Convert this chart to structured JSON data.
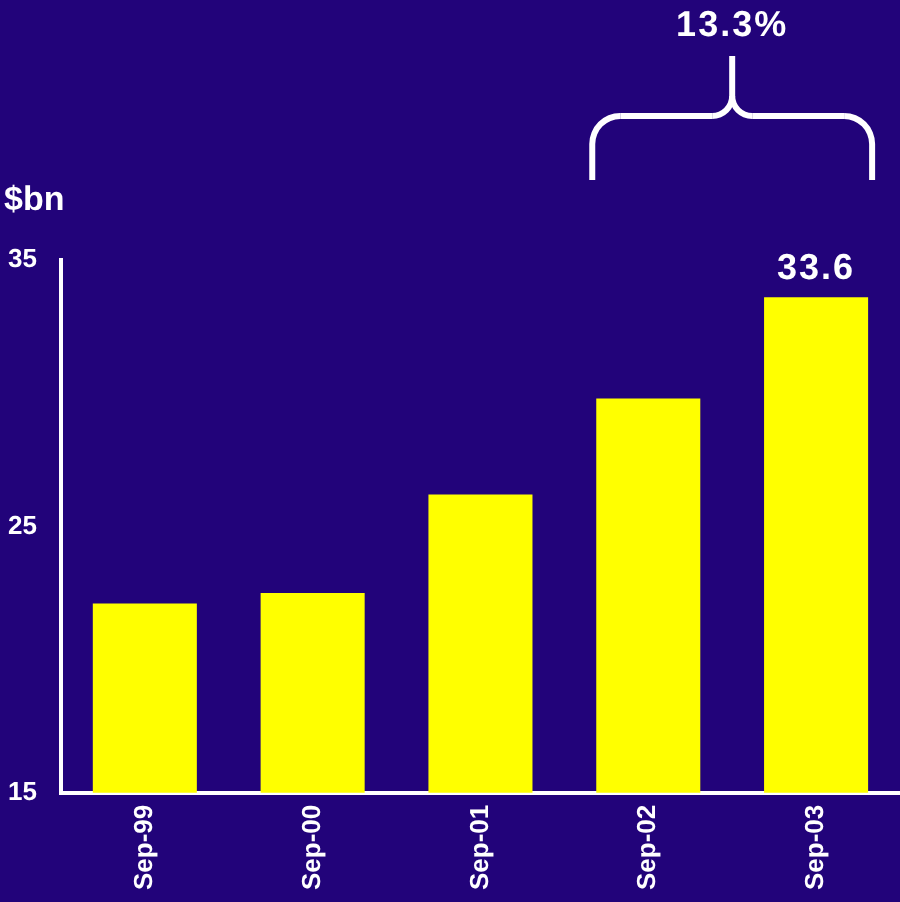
{
  "chart_data": {
    "type": "bar",
    "ylabel": "$bn",
    "categories": [
      "Sep-99",
      "Sep-00",
      "Sep-01",
      "Sep-02",
      "Sep-03"
    ],
    "values": [
      22.1,
      22.5,
      26.2,
      29.8,
      33.6
    ],
    "color": "#ffff00",
    "value_labels": [
      null,
      null,
      null,
      null,
      "33.6"
    ],
    "ylim": [
      15,
      35
    ],
    "yticks": [
      15,
      25,
      35
    ],
    "grid": false,
    "legend": false,
    "annotations": [
      "13.3%"
    ]
  }
}
